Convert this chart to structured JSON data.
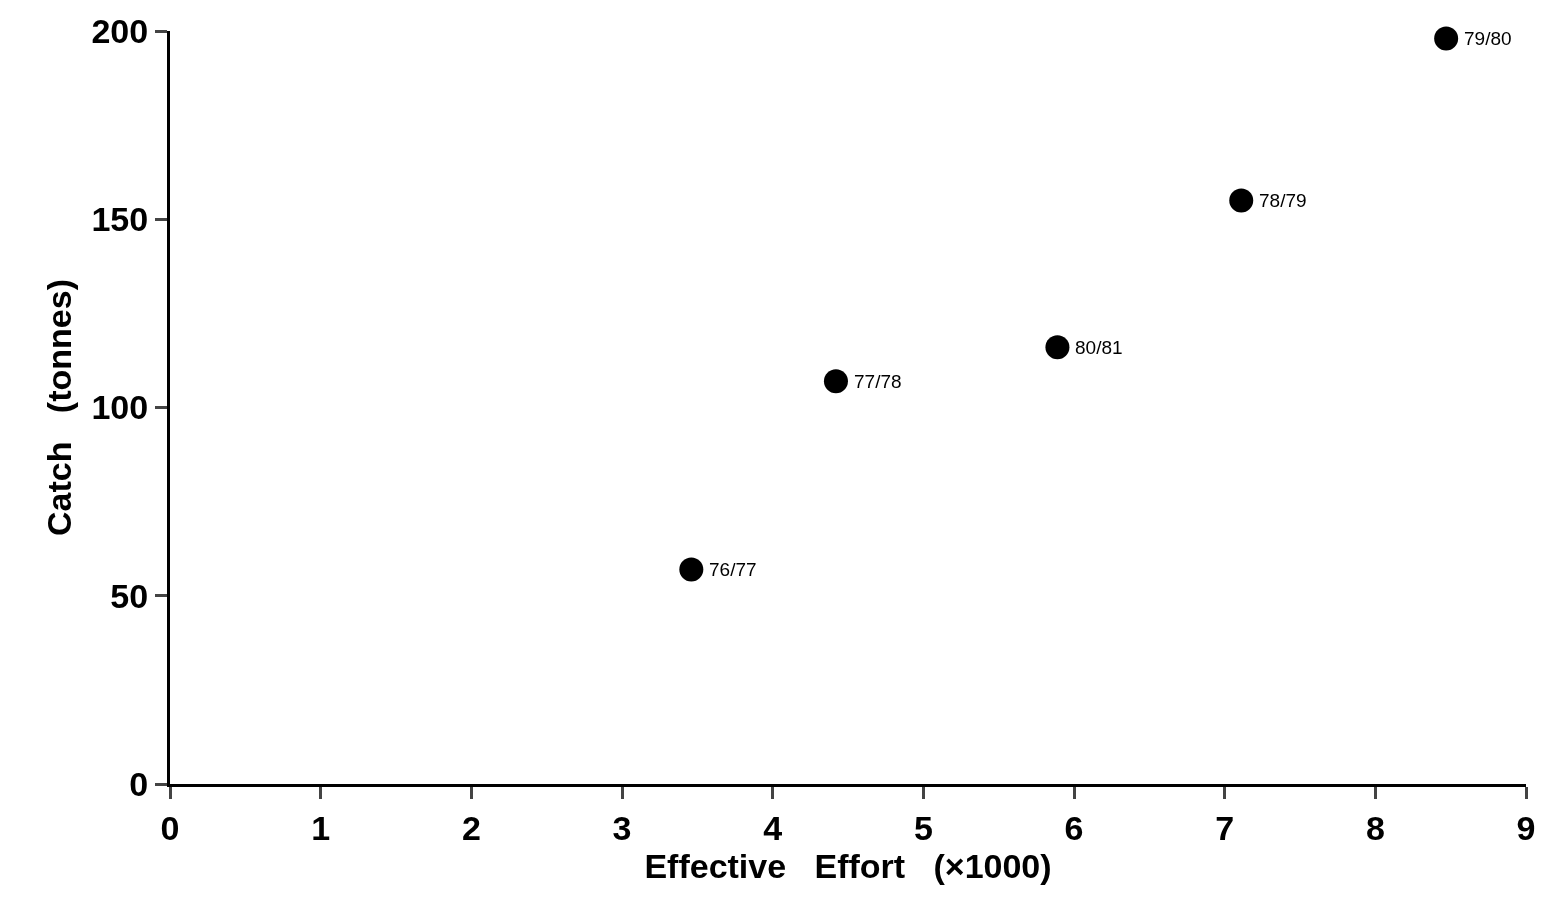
{
  "chart_data": {
    "type": "scatter",
    "xlabel": "Effective   Effort   (×1000)",
    "ylabel": "Catch   (tonnes)",
    "x": [
      3.46,
      4.42,
      5.89,
      7.11,
      8.47
    ],
    "series": [
      {
        "color": "#000000",
        "values": [
          57,
          107,
          116,
          155,
          198
        ]
      }
    ],
    "xlim": [
      0,
      9
    ],
    "xticks": [
      0,
      1,
      2,
      3,
      4,
      5,
      6,
      7,
      8,
      9
    ],
    "ylim": [
      0,
      200
    ],
    "yticks": [
      0,
      50,
      100,
      150,
      200
    ],
    "grid": false,
    "marker": "circle",
    "annotations": [
      {
        "text": "76/77",
        "x": 3.46,
        "y": 57
      },
      {
        "text": "77/78",
        "x": 4.42,
        "y": 107
      },
      {
        "text": "80/81",
        "x": 5.89,
        "y": 116
      },
      {
        "text": "78/79",
        "x": 7.11,
        "y": 155
      },
      {
        "text": "79/80",
        "x": 8.47,
        "y": 198
      }
    ]
  }
}
